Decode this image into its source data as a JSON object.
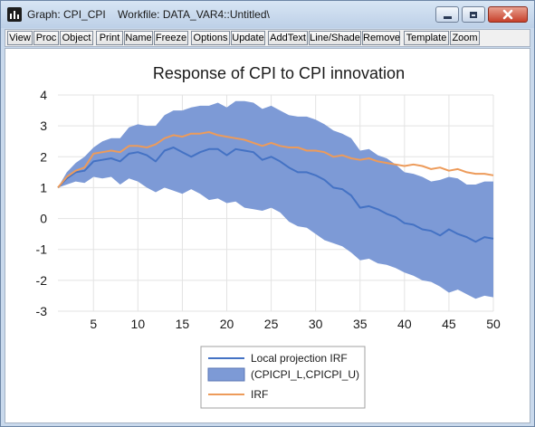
{
  "window": {
    "title": "Graph: CPI_CPI    Workfile: DATA_VAR4::Untitled\\"
  },
  "toolbar": {
    "buttons": [
      "View",
      "Proc",
      "Object",
      "Print",
      "Name",
      "Freeze",
      "Options",
      "Update",
      "AddText",
      "Line/Shade",
      "Remove",
      "Template",
      "Zoom"
    ]
  },
  "colors": {
    "band": "#7d9ad6",
    "local_projection": "#4472c4",
    "irf": "#ed9b5a"
  },
  "chart_data": {
    "type": "line",
    "title": "Response of CPI to CPI innovation",
    "x": [
      1,
      2,
      3,
      4,
      5,
      6,
      7,
      8,
      9,
      10,
      11,
      12,
      13,
      14,
      15,
      16,
      17,
      18,
      19,
      20,
      21,
      22,
      23,
      24,
      25,
      26,
      27,
      28,
      29,
      30,
      31,
      32,
      33,
      34,
      35,
      36,
      37,
      38,
      39,
      40,
      41,
      42,
      43,
      44,
      45,
      46,
      47,
      48,
      49,
      50
    ],
    "xticks": [
      5,
      10,
      15,
      20,
      25,
      30,
      35,
      40,
      45,
      50
    ],
    "yticks": [
      -3,
      -2,
      -1,
      0,
      1,
      2,
      3,
      4
    ],
    "xlim": [
      1,
      50
    ],
    "ylim": [
      -3,
      4
    ],
    "grid": true,
    "legend_position": "bottom-center",
    "series": [
      {
        "name": "Local projection IRF",
        "kind": "line",
        "values": [
          1.0,
          1.3,
          1.5,
          1.55,
          1.85,
          1.9,
          1.95,
          1.85,
          2.1,
          2.15,
          2.05,
          1.85,
          2.2,
          2.3,
          2.15,
          2.0,
          2.15,
          2.25,
          2.25,
          2.05,
          2.25,
          2.2,
          2.15,
          1.9,
          2.0,
          1.85,
          1.65,
          1.5,
          1.5,
          1.4,
          1.25,
          1.0,
          0.95,
          0.75,
          0.35,
          0.4,
          0.3,
          0.15,
          0.05,
          -0.15,
          -0.2,
          -0.35,
          -0.4,
          -0.55,
          -0.35,
          -0.5,
          -0.6,
          -0.75,
          -0.6,
          -0.65
        ]
      },
      {
        "name": "(CPICPI_L,CPICPI_U)",
        "kind": "band",
        "lower": [
          1.0,
          1.1,
          1.2,
          1.15,
          1.35,
          1.3,
          1.35,
          1.1,
          1.3,
          1.2,
          1.0,
          0.85,
          1.0,
          0.9,
          0.8,
          0.95,
          0.8,
          0.6,
          0.65,
          0.5,
          0.55,
          0.35,
          0.3,
          0.25,
          0.35,
          0.2,
          -0.1,
          -0.25,
          -0.3,
          -0.5,
          -0.7,
          -0.8,
          -0.9,
          -1.1,
          -1.35,
          -1.3,
          -1.45,
          -1.5,
          -1.6,
          -1.75,
          -1.85,
          -2.0,
          -2.05,
          -2.2,
          -2.4,
          -2.3,
          -2.45,
          -2.6,
          -2.5,
          -2.55
        ],
        "upper": [
          1.0,
          1.5,
          1.8,
          2.0,
          2.3,
          2.5,
          2.6,
          2.6,
          2.95,
          3.05,
          3.0,
          3.0,
          3.35,
          3.5,
          3.5,
          3.6,
          3.65,
          3.65,
          3.75,
          3.6,
          3.8,
          3.8,
          3.75,
          3.55,
          3.65,
          3.5,
          3.35,
          3.3,
          3.3,
          3.2,
          3.05,
          2.85,
          2.75,
          2.6,
          2.2,
          2.25,
          2.05,
          1.95,
          1.75,
          1.5,
          1.45,
          1.35,
          1.2,
          1.25,
          1.35,
          1.3,
          1.1,
          1.1,
          1.2,
          1.2
        ]
      },
      {
        "name": "IRF",
        "kind": "line",
        "values": [
          1.0,
          1.35,
          1.55,
          1.65,
          2.1,
          2.15,
          2.2,
          2.15,
          2.35,
          2.35,
          2.3,
          2.4,
          2.6,
          2.7,
          2.65,
          2.75,
          2.75,
          2.8,
          2.7,
          2.65,
          2.6,
          2.55,
          2.45,
          2.35,
          2.45,
          2.35,
          2.3,
          2.3,
          2.2,
          2.2,
          2.15,
          2.0,
          2.05,
          1.95,
          1.9,
          1.95,
          1.85,
          1.8,
          1.75,
          1.7,
          1.75,
          1.7,
          1.6,
          1.65,
          1.55,
          1.6,
          1.5,
          1.45,
          1.45,
          1.4
        ]
      }
    ]
  }
}
